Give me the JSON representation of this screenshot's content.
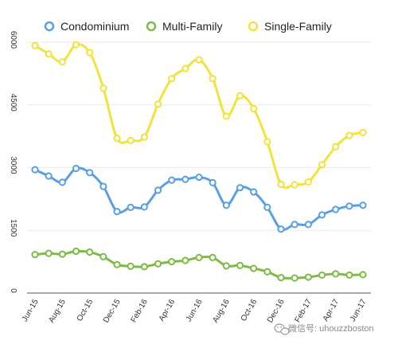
{
  "chart_data": {
    "type": "line",
    "x": [
      "Jun-15",
      "Jul-15",
      "Aug-15",
      "Sep-15",
      "Oct-15",
      "Nov-15",
      "Dec-15",
      "Jan-16",
      "Feb-16",
      "Mar-16",
      "Apr-16",
      "May-16",
      "Jun-16",
      "Jul-16",
      "Aug-16",
      "Sep-16",
      "Oct-16",
      "Nov-16",
      "Dec-16",
      "Jan-17",
      "Feb-17",
      "Mar-17",
      "Apr-17",
      "May-17",
      "Jun-17"
    ],
    "xtick_labels": [
      "Jun-15",
      "Aug-15",
      "Oct-15",
      "Dec-15",
      "Feb-16",
      "Apr-16",
      "Jun-16",
      "Aug-16",
      "Oct-16",
      "Dec-16",
      "Feb-17",
      "Apr-17",
      "Jun-17"
    ],
    "yticks": [
      0,
      1500,
      3000,
      4500,
      6000
    ],
    "ylim": [
      0,
      6000
    ],
    "grid": "horizontal",
    "legend_position": "top",
    "series": [
      {
        "name": "Condominium",
        "color": "#5b9fe3",
        "values": [
          2950,
          2800,
          2650,
          2980,
          2880,
          2550,
          1950,
          2050,
          2060,
          2460,
          2700,
          2720,
          2770,
          2640,
          2100,
          2520,
          2420,
          2050,
          1530,
          1640,
          1640,
          1870,
          2000,
          2080,
          2100
        ]
      },
      {
        "name": "Multi-Family",
        "color": "#7dbb45",
        "values": [
          920,
          950,
          930,
          1000,
          980,
          870,
          680,
          640,
          630,
          700,
          750,
          780,
          850,
          850,
          650,
          660,
          590,
          510,
          370,
          360,
          380,
          430,
          460,
          430,
          440
        ]
      },
      {
        "name": "Single-Family",
        "color": "#f2e23c",
        "values": [
          5920,
          5720,
          5530,
          5940,
          5750,
          4900,
          3700,
          3650,
          3730,
          4520,
          5130,
          5370,
          5580,
          5130,
          4230,
          4720,
          4410,
          3620,
          2600,
          2590,
          2660,
          3070,
          3500,
          3770,
          3840
        ]
      }
    ]
  },
  "watermark": {
    "icon": "wechat-icon",
    "text": "微信号: uhouzzboston"
  }
}
